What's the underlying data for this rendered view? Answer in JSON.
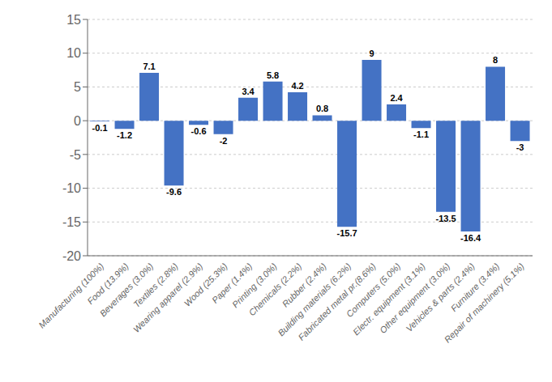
{
  "chart_data": {
    "type": "bar",
    "categories": [
      "Manufacturing (100%)",
      "Food (13.9%)",
      "Beverages (3.0%)",
      "Textiles (2.8%)",
      "Wearing apparel (2.9%)",
      "Wood (25.3%)",
      "Paper (1.4%)",
      "Printing (3.0%)",
      "Chemicals (2.2%)",
      "Rubber (2.4%)",
      "Building materials (6.2%)",
      "Fabricated metal pr.(8.6%)",
      "Computers (5.0%)",
      "Electr. equipment (3.1%)",
      "Other equipment (3.0%)",
      "Vehicles & parts (2.4%)",
      "Furniture (3.4%)",
      "Repair of machinery (5.1%)"
    ],
    "values": [
      -0.1,
      -1.2,
      7.1,
      -9.6,
      -0.6,
      -2.0,
      3.4,
      5.8,
      4.2,
      0.8,
      -15.7,
      9.0,
      2.4,
      -1.1,
      -13.5,
      -16.4,
      8.0,
      -3.0
    ],
    "color": "#4472C4",
    "ylim": [
      -20,
      15
    ],
    "yticks": [
      -20,
      -15,
      -10,
      -5,
      0,
      5,
      10,
      15
    ],
    "grid": true,
    "data_labels": true
  }
}
